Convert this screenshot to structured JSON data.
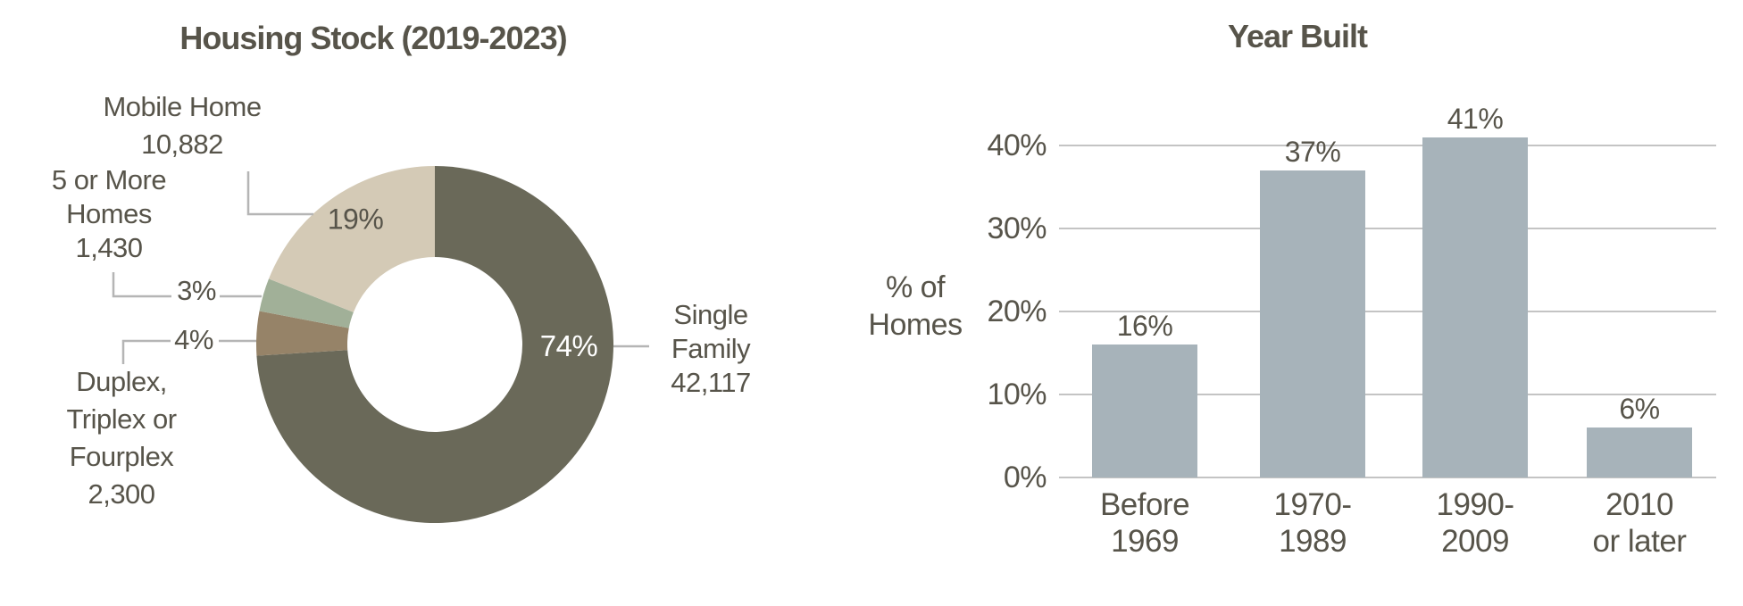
{
  "colors": {
    "text": "#57544a",
    "background": "#ffffff",
    "grid": "#c4c4c4",
    "leader_line": "#b5b5b5",
    "bar": "#a7b3ba",
    "pct_on_dark_text": "#ffffff",
    "donut_single_family": "#6a6959",
    "donut_duplex": "#968368",
    "donut_five_or_more": "#a1b098",
    "donut_mobile_home": "#d4cab6"
  },
  "chart_data": [
    {
      "type": "pie",
      "subtype": "donut",
      "title": "Housing Stock (2019-2023)",
      "direction": "clockwise",
      "start_angle_deg": 0,
      "slices": [
        {
          "name": "Single Family",
          "name_lines": [
            "Single",
            "Family",
            "42,117"
          ],
          "value": 42117,
          "value_text": "42,117",
          "pct": 74,
          "pct_label": "74%",
          "color": "#6a6959"
        },
        {
          "name": "Duplex, Triplex or Fourplex",
          "name_lines": [
            "Duplex,",
            "Triplex or",
            "Fourplex",
            "2,300"
          ],
          "value": 2300,
          "value_text": "2,300",
          "pct": 4,
          "pct_label": "4%",
          "color": "#968368"
        },
        {
          "name": "5 or More Homes",
          "name_lines": [
            "5 or More",
            "Homes",
            "1,430"
          ],
          "value": 1430,
          "value_text": "1,430",
          "pct": 3,
          "pct_label": "3%",
          "color": "#a1b098"
        },
        {
          "name": "Mobile Home",
          "name_lines": [
            "Mobile Home",
            "10,882"
          ],
          "value": 10882,
          "value_text": "10,882",
          "pct": 19,
          "pct_label": "19%",
          "color": "#d4cab6"
        }
      ]
    },
    {
      "type": "bar",
      "title": "Year Built",
      "categories": [
        [
          "Before",
          "1969"
        ],
        [
          "1970-",
          "1989"
        ],
        [
          "1990-",
          "2009"
        ],
        [
          "2010",
          "or later"
        ]
      ],
      "values": [
        16,
        37,
        41,
        6
      ],
      "value_labels": [
        "16%",
        "37%",
        "41%",
        "6%"
      ],
      "ylabel": "% of Homes",
      "ylabel_lines": [
        "% of",
        "Homes"
      ],
      "yticks": [
        0,
        10,
        20,
        30,
        40
      ],
      "ytick_labels": [
        "0%",
        "10%",
        "20%",
        "30%",
        "40%"
      ],
      "ylim": [
        0,
        45
      ],
      "grid": true,
      "legend": "none",
      "bar_color": "#a7b3ba"
    }
  ]
}
